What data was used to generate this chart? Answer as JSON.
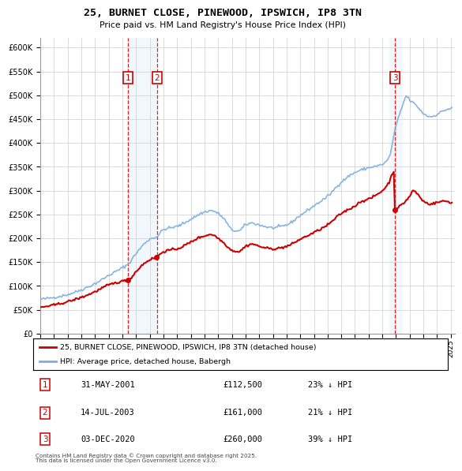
{
  "title": "25, BURNET CLOSE, PINEWOOD, IPSWICH, IP8 3TN",
  "subtitle": "Price paid vs. HM Land Registry's House Price Index (HPI)",
  "legend_property": "25, BURNET CLOSE, PINEWOOD, IPSWICH, IP8 3TN (detached house)",
  "legend_hpi": "HPI: Average price, detached house, Babergh",
  "property_color": "#cc0000",
  "hpi_color": "#7aade0",
  "sale_marker_color": "#cc0000",
  "vline_color": "#cc0000",
  "shade_color": "#cce0f5",
  "bg_color": "#f0f4f8",
  "ylim": [
    0,
    620000
  ],
  "yticks": [
    0,
    50000,
    100000,
    150000,
    200000,
    250000,
    300000,
    350000,
    400000,
    450000,
    500000,
    550000,
    600000
  ],
  "ytick_labels": [
    "£0",
    "£50K",
    "£100K",
    "£150K",
    "£200K",
    "£250K",
    "£300K",
    "£350K",
    "£400K",
    "£450K",
    "£500K",
    "£550K",
    "£600K"
  ],
  "sales": [
    {
      "num": 1,
      "date": "31-MAY-2001",
      "price": 112500,
      "year": 2001.42,
      "discount": "23% ↓ HPI"
    },
    {
      "num": 2,
      "date": "14-JUL-2003",
      "price": 161000,
      "year": 2003.54,
      "discount": "21% ↓ HPI"
    },
    {
      "num": 3,
      "date": "03-DEC-2020",
      "price": 260000,
      "year": 2020.92,
      "discount": "39% ↓ HPI"
    }
  ],
  "footnote1": "Contains HM Land Registry data © Crown copyright and database right 2025.",
  "footnote2": "This data is licensed under the Open Government Licence v3.0.",
  "xmin": 1995.5,
  "xmax": 2025.3
}
